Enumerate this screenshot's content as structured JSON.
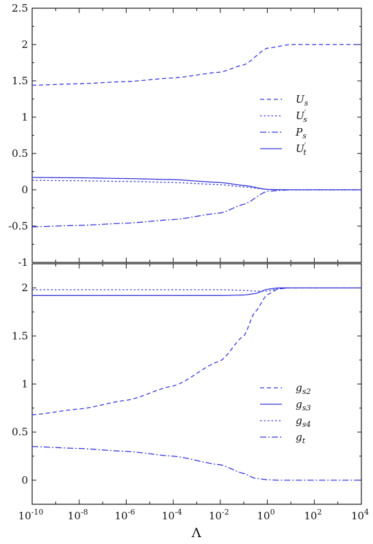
{
  "xaxis": {
    "label": "Λ",
    "scale": "log",
    "range_log10": [
      -10,
      4
    ],
    "tick_exponents": [
      "-10",
      "-8",
      "-6",
      "-4",
      "-2",
      "0",
      "2",
      "4"
    ],
    "tick_base": "10"
  },
  "chart_data": [
    {
      "type": "line",
      "xscale": "log",
      "xlim": [
        1e-10,
        10000
      ],
      "ylim": [
        -1,
        2.5
      ],
      "yticks": [
        "2.5",
        "2",
        "1.5",
        "1",
        "0.5",
        "0",
        "-0.5",
        "-1"
      ],
      "xlabel": "",
      "ylabel": "",
      "legend_position": "right",
      "color": "#3333dd",
      "series": [
        {
          "name": "U",
          "sub": "s",
          "prime": false,
          "dash": "dashed",
          "x": [
            1e-10,
            1e-08,
            1e-06,
            0.0001,
            0.01,
            0.1,
            1,
            10,
            100,
            10000
          ],
          "y": [
            1.44,
            1.46,
            1.49,
            1.54,
            1.62,
            1.72,
            1.95,
            2.0,
            2.0,
            2.0
          ]
        },
        {
          "name": "U",
          "sub": "s",
          "prime": true,
          "dash": "dotted",
          "x": [
            1e-10,
            1e-08,
            1e-06,
            0.0001,
            0.01,
            0.1,
            1,
            10,
            100,
            10000
          ],
          "y": [
            0.13,
            0.125,
            0.115,
            0.1,
            0.07,
            0.04,
            0.005,
            0.0,
            0.0,
            0.0
          ]
        },
        {
          "name": "P",
          "sub": "s",
          "prime": false,
          "dash": "dashdot",
          "x": [
            1e-10,
            1e-08,
            1e-06,
            0.0001,
            0.01,
            0.1,
            1,
            10,
            100,
            10000
          ],
          "y": [
            -0.51,
            -0.49,
            -0.46,
            -0.41,
            -0.32,
            -0.2,
            -0.02,
            0.0,
            0.0,
            0.0
          ]
        },
        {
          "name": "U",
          "sub": "t",
          "prime": true,
          "dash": "solid",
          "x": [
            1e-10,
            1e-08,
            1e-06,
            0.0001,
            0.01,
            0.1,
            1,
            10,
            100,
            10000
          ],
          "y": [
            0.17,
            0.165,
            0.155,
            0.14,
            0.1,
            0.06,
            0.005,
            0.0,
            0.0,
            0.0
          ]
        }
      ]
    },
    {
      "type": "line",
      "xscale": "log",
      "xlim": [
        1e-10,
        10000
      ],
      "ylim": [
        -0.25,
        2.25
      ],
      "yticks": [
        "2",
        "1.5",
        "1",
        "0.5",
        "0"
      ],
      "xlabel": "Λ",
      "ylabel": "",
      "legend_position": "right",
      "color": "#3333dd",
      "series": [
        {
          "name": "g",
          "sub": "s2",
          "prime": false,
          "dash": "dashed",
          "x": [
            1e-10,
            1e-08,
            1e-06,
            0.0001,
            0.01,
            0.1,
            0.3,
            1,
            3,
            10,
            10000
          ],
          "y": [
            0.68,
            0.74,
            0.83,
            0.98,
            1.24,
            1.5,
            1.75,
            1.93,
            1.99,
            2.0,
            2.0
          ]
        },
        {
          "name": "g",
          "sub": "s3",
          "prime": false,
          "dash": "solid",
          "x": [
            1e-10,
            1e-08,
            1e-06,
            0.0001,
            0.01,
            0.1,
            0.3,
            1,
            3,
            10,
            10000
          ],
          "y": [
            1.92,
            1.92,
            1.92,
            1.92,
            1.92,
            1.925,
            1.94,
            1.985,
            2.0,
            2.0,
            2.0
          ]
        },
        {
          "name": "g",
          "sub": "s4",
          "prime": false,
          "dash": "dotted",
          "x": [
            1e-10,
            1e-08,
            1e-06,
            0.0001,
            0.01,
            0.1,
            0.3,
            1,
            3,
            10,
            10000
          ],
          "y": [
            1.98,
            1.98,
            1.98,
            1.98,
            1.98,
            1.975,
            1.965,
            1.965,
            1.99,
            2.0,
            2.0
          ]
        },
        {
          "name": "g",
          "sub": "t",
          "prime": false,
          "dash": "dashdot",
          "x": [
            1e-10,
            1e-08,
            1e-06,
            0.0001,
            0.01,
            0.1,
            0.3,
            1,
            3,
            10,
            10000
          ],
          "y": [
            0.35,
            0.33,
            0.3,
            0.25,
            0.16,
            0.07,
            0.02,
            0.005,
            0.0,
            0.0,
            0.0
          ]
        }
      ]
    }
  ]
}
